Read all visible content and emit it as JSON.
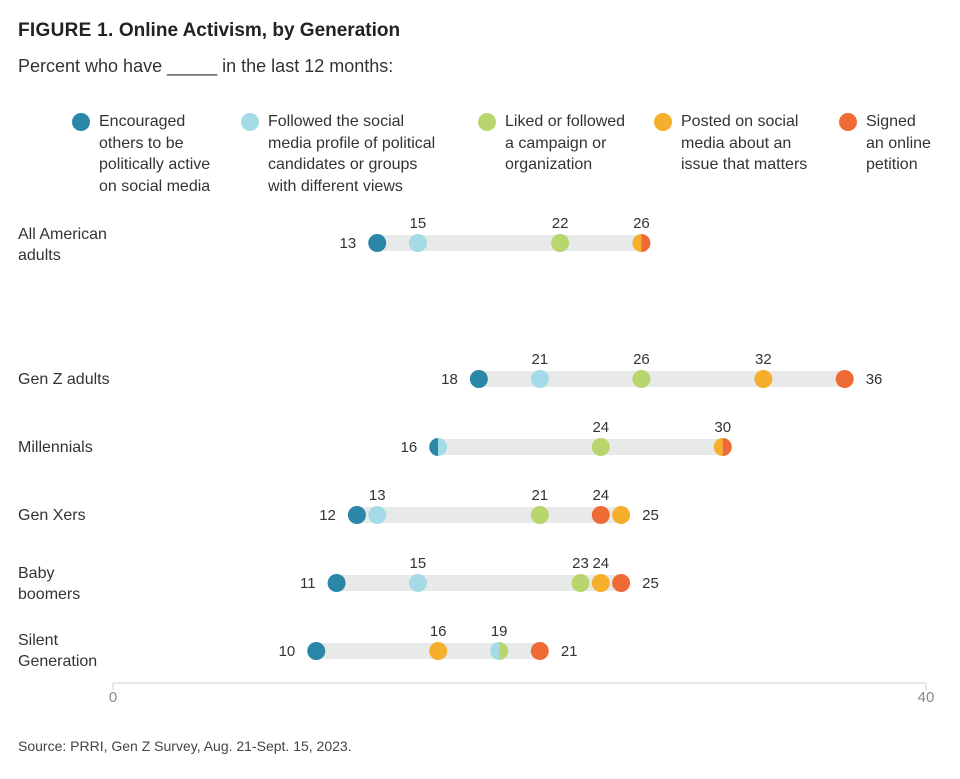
{
  "header": {
    "figure_label": "FIGURE 1.",
    "title": "Online Activism, by Generation",
    "subtitle": "Percent who have _____ in the last 12 months:"
  },
  "source": "Source: PRRI, Gen Z Survey, Aug. 21-Sept. 15, 2023.",
  "chart_data": {
    "type": "dot-range",
    "title": "Online Activism, by Generation",
    "subtitle": "Percent who have _____ in the last 12 months:",
    "xlim": [
      0,
      40
    ],
    "x_ticks": [
      0,
      40
    ],
    "legend_position": "top",
    "series": [
      {
        "name": "Encouraged others to be politically active on social media",
        "lines": [
          "Encouraged",
          "others to be",
          "politically active",
          "on social media"
        ],
        "color": "#2a87a8"
      },
      {
        "name": "Followed the social media profile of political candidates or groups with different views",
        "lines": [
          "Followed the social",
          "media profile of political",
          "candidates or groups",
          "with different views"
        ],
        "color": "#a5dbe6"
      },
      {
        "name": "Liked or followed a campaign or organization",
        "lines": [
          "Liked or followed",
          "a campaign or",
          "organization"
        ],
        "color": "#b8d56e"
      },
      {
        "name": "Posted on social media about an issue that matters",
        "lines": [
          "Posted on social",
          "media about an",
          "issue that matters"
        ],
        "color": "#f6ae2d"
      },
      {
        "name": "Signed an online petition",
        "lines": [
          "Signed",
          "an online",
          "petition"
        ],
        "color": "#ef6b35"
      }
    ],
    "categories": [
      {
        "label": [
          "All American",
          "adults"
        ],
        "values": [
          13,
          15,
          22,
          26,
          26
        ],
        "shown_labels": [
          "13",
          "15",
          "22",
          "",
          "26"
        ]
      },
      {
        "label": [
          "Gen Z adults"
        ],
        "values": [
          18,
          21,
          26,
          32,
          36
        ],
        "shown_labels": [
          "18",
          "21",
          "26",
          "32",
          "36"
        ]
      },
      {
        "label": [
          "Millennials"
        ],
        "values": [
          16,
          16,
          24,
          30,
          30
        ],
        "shown_labels": [
          "16",
          "",
          "24",
          "",
          "30"
        ]
      },
      {
        "label": [
          "Gen Xers"
        ],
        "values": [
          12,
          13,
          21,
          25,
          24
        ],
        "shown_labels": [
          "12",
          "13",
          "21",
          "25",
          "24"
        ]
      },
      {
        "label": [
          "Baby",
          "boomers"
        ],
        "values": [
          11,
          15,
          23,
          24,
          25
        ],
        "shown_labels": [
          "11",
          "15",
          "23",
          "24",
          "25"
        ]
      },
      {
        "label": [
          "Silent",
          "Generation"
        ],
        "values": [
          10,
          19,
          19,
          16,
          21
        ],
        "shown_labels": [
          "10",
          "19",
          "",
          "16",
          "21"
        ]
      }
    ]
  }
}
